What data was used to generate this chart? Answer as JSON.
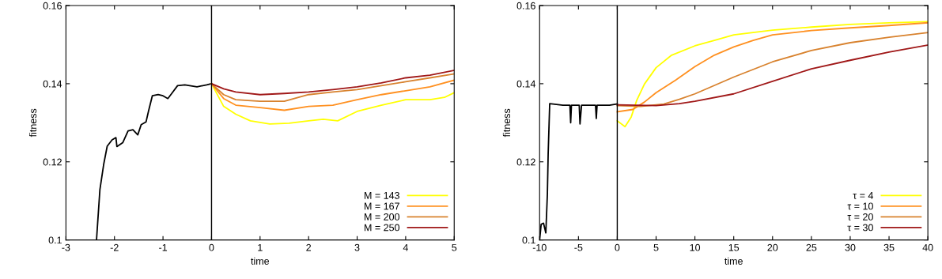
{
  "chart_data": [
    {
      "type": "line",
      "xlabel": "time",
      "ylabel": "fitness",
      "xlim": [
        -3,
        5
      ],
      "ylim": [
        0.1,
        0.16
      ],
      "xticks": [
        -3,
        -2,
        -1,
        0,
        1,
        2,
        3,
        4,
        5
      ],
      "yticks": [
        0.1,
        0.12,
        0.14,
        0.16
      ],
      "grid": false,
      "legend": "bottom right",
      "line_style": "solid",
      "marker": "none",
      "ref_lines": [
        {
          "axis": "x",
          "value": 0,
          "color": "#000000"
        }
      ],
      "series": [
        {
          "color": "#000000",
          "x": [
            -2.37,
            -2.3,
            -2.22,
            -2.15,
            -2.05,
            -1.97,
            -1.95,
            -1.83,
            -1.72,
            -1.62,
            -1.52,
            -1.45,
            -1.35,
            -1.3,
            -1.22,
            -1.1,
            -1.0,
            -0.9,
            -0.82,
            -0.7,
            -0.55,
            -0.3,
            -0.1,
            0
          ],
          "values": [
            0.1,
            0.1129,
            0.1195,
            0.124,
            0.1256,
            0.1262,
            0.1239,
            0.1249,
            0.1279,
            0.1282,
            0.1269,
            0.1295,
            0.1302,
            0.1329,
            0.1369,
            0.1372,
            0.1369,
            0.1362,
            0.1375,
            0.1395,
            0.1397,
            0.1392,
            0.1397,
            0.14
          ]
        },
        {
          "name": "M = 143",
          "color": "#ffff00",
          "x": [
            0,
            0.25,
            0.5,
            0.8,
            1.2,
            1.6,
            2.0,
            2.3,
            2.6,
            3.0,
            3.5,
            4.0,
            4.5,
            4.8,
            5
          ],
          "values": [
            0.14,
            0.1342,
            0.1322,
            0.1305,
            0.1297,
            0.1299,
            0.1305,
            0.1309,
            0.1305,
            0.1329,
            0.1345,
            0.1359,
            0.1359,
            0.1365,
            0.1377
          ]
        },
        {
          "name": "M = 167",
          "color": "#ff9020",
          "x": [
            0,
            0.25,
            0.5,
            1.0,
            1.5,
            2.0,
            2.5,
            3.0,
            3.5,
            4.0,
            4.5,
            5
          ],
          "values": [
            0.14,
            0.1362,
            0.1345,
            0.1339,
            0.1332,
            0.1342,
            0.1345,
            0.1359,
            0.1372,
            0.1382,
            0.1392,
            0.1409
          ]
        },
        {
          "name": "M = 200",
          "color": "#d8822e",
          "x": [
            0,
            0.25,
            0.5,
            1.0,
            1.5,
            2.0,
            2.5,
            3.0,
            3.5,
            4.0,
            4.5,
            5
          ],
          "values": [
            0.14,
            0.1372,
            0.1359,
            0.1355,
            0.1355,
            0.1372,
            0.1379,
            0.1385,
            0.1395,
            0.1405,
            0.1415,
            0.1425
          ]
        },
        {
          "name": "M = 250",
          "color": "#a01818",
          "x": [
            0,
            0.25,
            0.5,
            1.0,
            1.5,
            2.0,
            2.5,
            3.0,
            3.5,
            4.0,
            4.5,
            5
          ],
          "values": [
            0.14,
            0.1387,
            0.1379,
            0.1372,
            0.1375,
            0.1379,
            0.1385,
            0.1392,
            0.1402,
            0.1415,
            0.1422,
            0.1434
          ]
        }
      ]
    },
    {
      "type": "line",
      "xlabel": "time",
      "ylabel": "fitness",
      "xlim": [
        -10,
        40
      ],
      "ylim": [
        0.1,
        0.16
      ],
      "xticks": [
        -10,
        -5,
        0,
        5,
        10,
        15,
        20,
        25,
        30,
        35,
        40
      ],
      "yticks": [
        0.1,
        0.12,
        0.14,
        0.16
      ],
      "grid": false,
      "legend": "bottom right",
      "line_style": "solid",
      "marker": "none",
      "ref_lines": [
        {
          "axis": "x",
          "value": 0,
          "color": "#000000"
        }
      ],
      "series": [
        {
          "color": "#000000",
          "x": [
            -10,
            -9.8,
            -9.5,
            -9.2,
            -9,
            -8.9,
            -8.7,
            -7,
            -6.1,
            -6,
            -5.9,
            -4.9,
            -4.8,
            -4.6,
            -2.8,
            -2.7,
            -2.6,
            -1,
            0
          ],
          "values": [
            0.1,
            0.104,
            0.1043,
            0.1018,
            0.1117,
            0.1219,
            0.1349,
            0.1345,
            0.1345,
            0.13,
            0.1345,
            0.1345,
            0.1297,
            0.1345,
            0.1345,
            0.1311,
            0.1345,
            0.1345,
            0.1348
          ]
        },
        {
          "name": "τ = 4",
          "color": "#ffff00",
          "x": [
            0,
            1,
            1.8,
            2.5,
            3.5,
            5,
            7,
            10,
            12.5,
            15,
            20,
            25,
            30,
            35,
            40
          ],
          "values": [
            0.1305,
            0.129,
            0.1315,
            0.1357,
            0.1399,
            0.1441,
            0.1473,
            0.1497,
            0.1511,
            0.1525,
            0.1537,
            0.1545,
            0.1552,
            0.1556,
            0.1559
          ]
        },
        {
          "name": "τ = 10",
          "color": "#ff9020",
          "x": [
            0,
            2,
            3.5,
            5,
            7.5,
            10,
            12.5,
            15,
            17.5,
            20,
            25,
            30,
            35,
            40
          ],
          "values": [
            0.1328,
            0.1334,
            0.1353,
            0.1377,
            0.1409,
            0.1444,
            0.1473,
            0.1494,
            0.1511,
            0.1525,
            0.1536,
            0.1543,
            0.1549,
            0.1556
          ]
        },
        {
          "name": "τ = 20",
          "color": "#d8822e",
          "x": [
            0,
            3,
            6,
            8,
            10,
            15,
            20,
            25,
            30,
            35,
            40
          ],
          "values": [
            0.1344,
            0.1342,
            0.1348,
            0.136,
            0.1374,
            0.1417,
            0.1456,
            0.1485,
            0.1505,
            0.1519,
            0.1531
          ]
        },
        {
          "name": "τ = 30",
          "color": "#a01818",
          "x": [
            0,
            5,
            8,
            10,
            15,
            20,
            25,
            30,
            35,
            40
          ],
          "values": [
            0.1346,
            0.1344,
            0.1349,
            0.1355,
            0.1374,
            0.1406,
            0.1438,
            0.146,
            0.1481,
            0.1499
          ]
        }
      ]
    }
  ]
}
